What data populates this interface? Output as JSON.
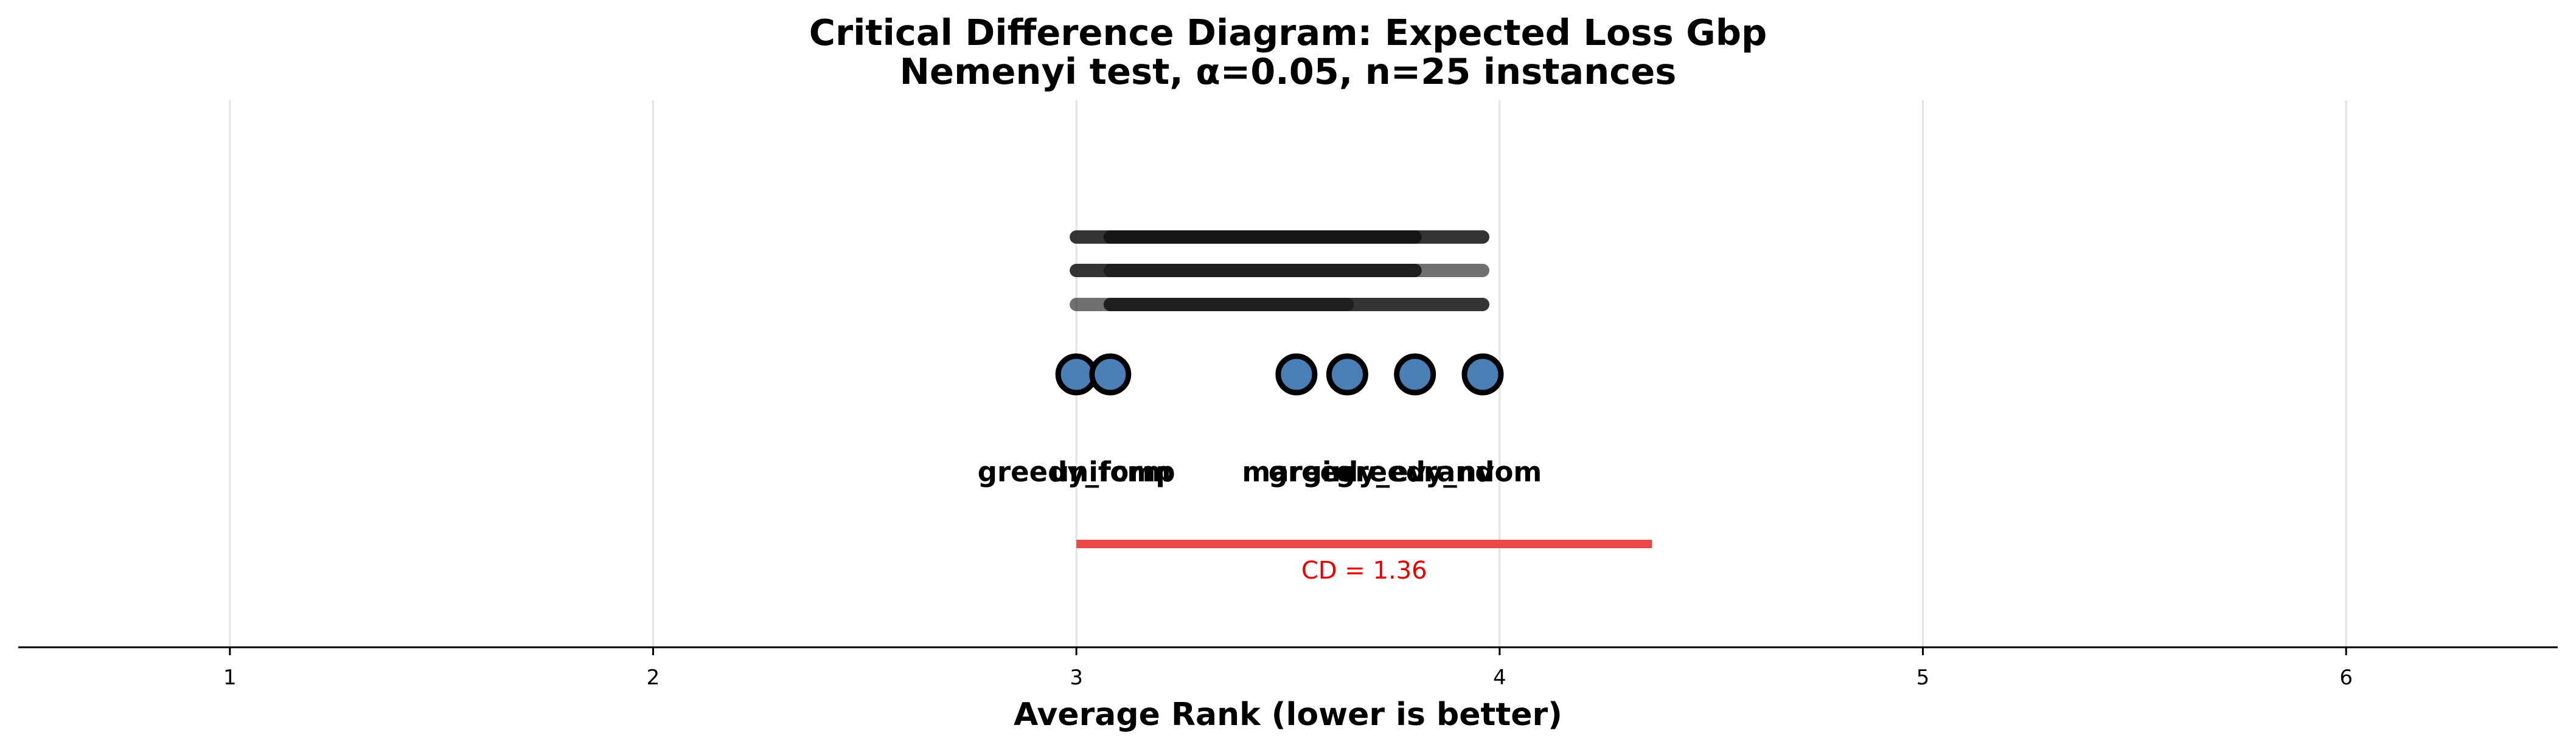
{
  "chart_data": {
    "type": "critical-difference-diagram",
    "title": "Critical Difference Diagram: Expected Loss Gbp",
    "subtitle": "Nemenyi test, α=0.05, n=25 instances",
    "xlabel": "Average Rank (lower is better)",
    "xlim": [
      0.5,
      6.5
    ],
    "xticks": [
      1,
      2,
      3,
      4,
      5,
      6
    ],
    "grid": true,
    "methods": [
      {
        "name": "greedy_fcmp",
        "rank": 3.0
      },
      {
        "name": "uniform",
        "rank": 3.08
      },
      {
        "name": "margin",
        "rank": 3.52
      },
      {
        "name": "greedy_ev",
        "rank": 3.64
      },
      {
        "name": "greedy_nv",
        "rank": 3.8
      },
      {
        "name": "random",
        "rank": 3.96
      }
    ],
    "clique_bars": [
      {
        "from": 3.0,
        "to": 3.96,
        "row": 0,
        "opacity": 0.85
      },
      {
        "from": 3.08,
        "to": 3.8,
        "row": 0,
        "opacity": 0.85
      },
      {
        "from": 3.0,
        "to": 3.8,
        "row": 1,
        "opacity": 0.85
      },
      {
        "from": 3.08,
        "to": 3.96,
        "row": 1,
        "opacity": 0.6
      },
      {
        "from": 3.0,
        "to": 3.64,
        "row": 2,
        "opacity": 0.6
      },
      {
        "from": 3.08,
        "to": 3.96,
        "row": 2,
        "opacity": 0.85
      }
    ],
    "cd": {
      "value": 1.36,
      "start": 3.0,
      "label": "CD = 1.36",
      "color": "#e84a4a"
    },
    "marker_color": "#4a7fb5"
  }
}
